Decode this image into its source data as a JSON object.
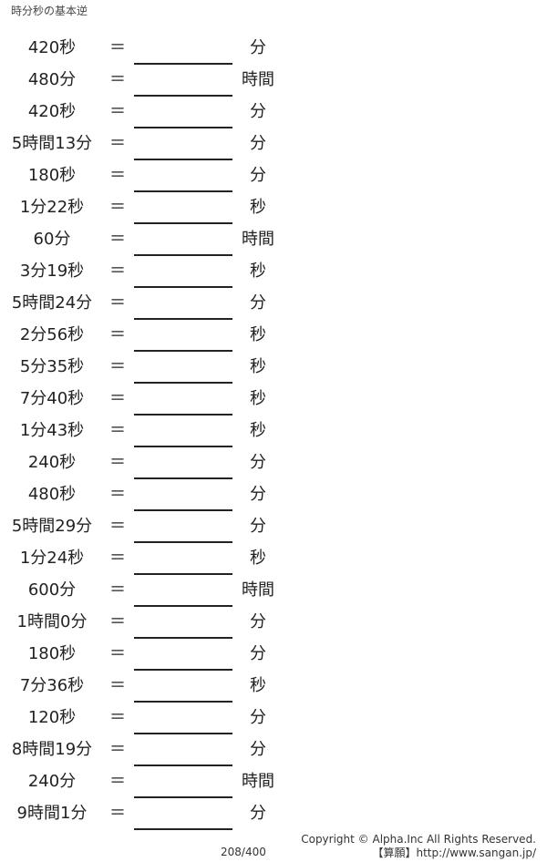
{
  "title": "時分秒の基本逆",
  "equals_sign": "＝",
  "problems": [
    {
      "question": "420秒",
      "unit": "分"
    },
    {
      "question": "480分",
      "unit": "時間"
    },
    {
      "question": "420秒",
      "unit": "分"
    },
    {
      "question": "5時間13分",
      "unit": "分"
    },
    {
      "question": "180秒",
      "unit": "分"
    },
    {
      "question": "1分22秒",
      "unit": "秒"
    },
    {
      "question": "60分",
      "unit": "時間"
    },
    {
      "question": "3分19秒",
      "unit": "秒"
    },
    {
      "question": "5時間24分",
      "unit": "分"
    },
    {
      "question": "2分56秒",
      "unit": "秒"
    },
    {
      "question": "5分35秒",
      "unit": "秒"
    },
    {
      "question": "7分40秒",
      "unit": "秒"
    },
    {
      "question": "1分43秒",
      "unit": "秒"
    },
    {
      "question": "240秒",
      "unit": "分"
    },
    {
      "question": "480秒",
      "unit": "分"
    },
    {
      "question": "5時間29分",
      "unit": "分"
    },
    {
      "question": "1分24秒",
      "unit": "秒"
    },
    {
      "question": "600分",
      "unit": "時間"
    },
    {
      "question": "1時間0分",
      "unit": "分"
    },
    {
      "question": "180秒",
      "unit": "分"
    },
    {
      "question": "7分36秒",
      "unit": "秒"
    },
    {
      "question": "120秒",
      "unit": "分"
    },
    {
      "question": "8時間19分",
      "unit": "分"
    },
    {
      "question": "240分",
      "unit": "時間"
    },
    {
      "question": "9時間1分",
      "unit": "分"
    }
  ],
  "footer": {
    "page": "208/400",
    "copyright": "Copyright © Alpha.Inc All Rights Reserved.",
    "site": "【算願】http://www.sangan.jp/"
  }
}
